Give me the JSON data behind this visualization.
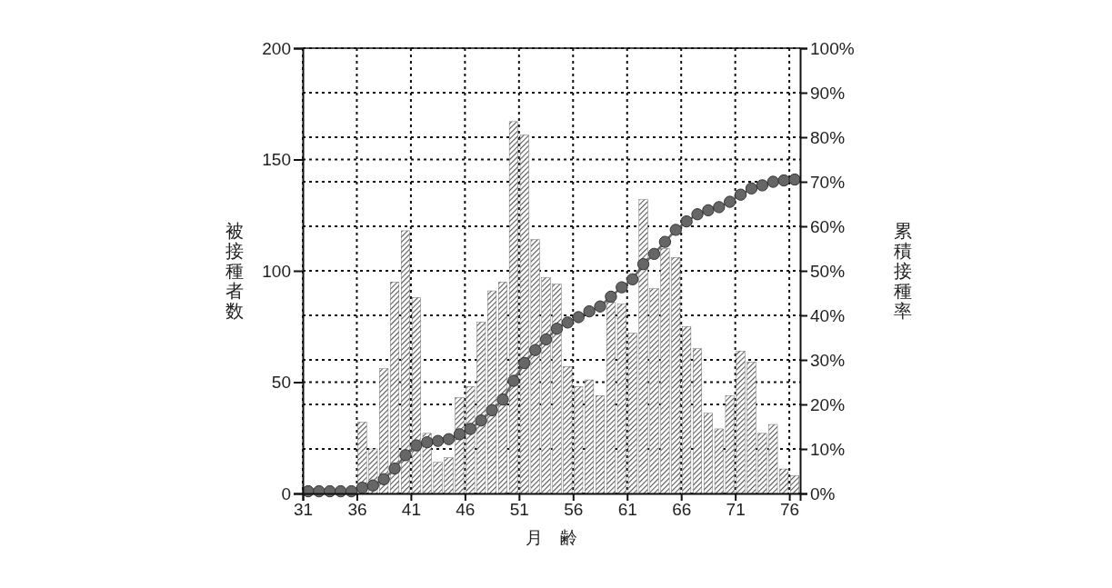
{
  "chart_data": {
    "type": "bar",
    "xlabel": "月　齢",
    "ylabel": "被接種者数",
    "y2label": "累積接種率",
    "xlim": [
      31,
      77
    ],
    "xticks": [
      31,
      36,
      41,
      46,
      51,
      56,
      61,
      66,
      71,
      76
    ],
    "ylim": [
      0,
      200
    ],
    "yticks": [
      0,
      50,
      100,
      150,
      200
    ],
    "y2lim": [
      0,
      100
    ],
    "y2ticks": [
      {
        "value": 0,
        "label": "0%"
      },
      {
        "value": 10,
        "label": "10%"
      },
      {
        "value": 20,
        "label": "20%"
      },
      {
        "value": 30,
        "label": "30%"
      },
      {
        "value": 40,
        "label": "40%"
      },
      {
        "value": 50,
        "label": "50%"
      },
      {
        "value": 60,
        "label": "60%"
      },
      {
        "value": 70,
        "label": "70%"
      },
      {
        "value": 80,
        "label": "80%"
      },
      {
        "value": 90,
        "label": "90%"
      },
      {
        "value": 100,
        "label": "100%"
      }
    ],
    "grid": true,
    "series": [
      {
        "color": "#555555",
        "x": [
          36.5,
          37.5,
          38.5,
          39.5,
          40.5,
          41.5,
          42.5,
          43.5,
          44.5,
          45.5,
          46.5,
          47.5,
          48.5,
          49.5,
          50.5,
          51.5,
          52.5,
          53.5,
          54.5,
          55.5,
          56.5,
          57.5,
          58.5,
          59.5,
          60.5,
          61.5,
          62.5,
          63.5,
          64.5,
          65.5,
          66.5,
          67.5,
          68.5,
          69.5,
          70.5,
          71.5,
          72.5,
          73.5,
          74.5,
          75.5,
          76.5
        ],
        "values": [
          32,
          20,
          56,
          95,
          118,
          88,
          27,
          14,
          16,
          43,
          48,
          77,
          91,
          95,
          167,
          161,
          114,
          97,
          94,
          57,
          48,
          51,
          44,
          86,
          85,
          72,
          132,
          92,
          110,
          106,
          75,
          65,
          36,
          29,
          44,
          64,
          59,
          27,
          31,
          11,
          8
        ]
      },
      {
        "type": "line",
        "axis": "y2",
        "color": "#666666",
        "marker": "circle",
        "line_style": "solid",
        "x": [
          31.5,
          32.5,
          33.5,
          34.5,
          35.5,
          36.5,
          37.5,
          38.5,
          39.5,
          40.5,
          41.5,
          42.5,
          43.5,
          44.5,
          45.5,
          46.5,
          47.5,
          48.5,
          49.5,
          50.5,
          51.5,
          52.5,
          53.5,
          54.5,
          55.5,
          56.5,
          57.5,
          58.5,
          59.5,
          60.5,
          61.5,
          62.5,
          63.5,
          64.5,
          65.5,
          66.5,
          67.5,
          68.5,
          69.5,
          70.5,
          71.5,
          72.5,
          73.5,
          74.5,
          75.5,
          76.5
        ],
        "values": [
          0.5,
          0.5,
          0.5,
          0.5,
          0.5,
          1.3,
          1.8,
          3.2,
          5.6,
          8.6,
          10.8,
          11.5,
          11.8,
          12.2,
          13.3,
          14.5,
          16.4,
          18.7,
          21.1,
          25.3,
          29.3,
          32.2,
          34.6,
          37.0,
          38.4,
          39.6,
          40.9,
          42.0,
          44.2,
          46.3,
          48.1,
          51.5,
          53.8,
          56.5,
          59.2,
          61.1,
          62.7,
          63.6,
          64.3,
          65.5,
          67.1,
          68.5,
          69.2,
          70.0,
          70.3,
          70.5
        ]
      }
    ]
  }
}
